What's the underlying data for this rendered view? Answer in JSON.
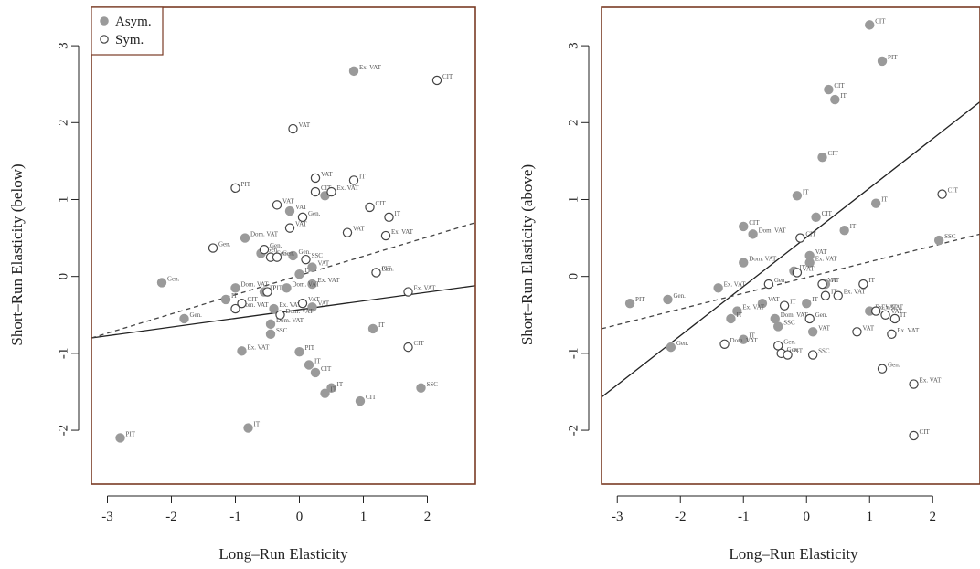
{
  "chart_data": [
    {
      "type": "scatter",
      "xlabel": "Long–Run Elasticity",
      "ylabel": "Short–Run Elasticity (below)",
      "xlim": [
        -3.25,
        2.75
      ],
      "ylim": [
        -2.7,
        3.5
      ],
      "xticks": [
        "-3",
        "-2",
        "-1",
        "0",
        "1",
        "2"
      ],
      "yticks": [
        "-2",
        "-1",
        "0",
        "1",
        "2",
        "3"
      ],
      "legend": {
        "position": "top-left",
        "entries": [
          "Asym.",
          "Sym."
        ]
      },
      "colors": {
        "asym": "#9a9a9a",
        "sym": "#444444",
        "frame": "#7a3b24"
      },
      "series": [
        {
          "name": "Asym.",
          "marker": "filled-circle",
          "points": [
            [
              0.85,
              2.67,
              "Ex. VAT"
            ],
            [
              -0.15,
              0.85,
              "VAT"
            ],
            [
              0.4,
              1.05,
              "IT"
            ],
            [
              -0.85,
              0.5,
              "Dom. VAT"
            ],
            [
              -2.15,
              -0.08,
              "Gen."
            ],
            [
              -1.0,
              -0.15,
              "Dom. VAT"
            ],
            [
              -1.15,
              -0.3,
              "IT"
            ],
            [
              -0.45,
              -0.62,
              "Dom. VAT"
            ],
            [
              -0.45,
              -0.75,
              "SSC"
            ],
            [
              -0.9,
              -0.97,
              "Ex. VAT"
            ],
            [
              0.0,
              -0.98,
              "PIT"
            ],
            [
              0.15,
              -1.15,
              "IT"
            ],
            [
              0.25,
              -1.25,
              "CIT"
            ],
            [
              0.5,
              -1.45,
              "IT"
            ],
            [
              0.4,
              -1.52,
              "IT"
            ],
            [
              0.95,
              -1.62,
              "CIT"
            ],
            [
              1.15,
              -0.68,
              "IT"
            ],
            [
              1.9,
              -1.45,
              "SSC"
            ],
            [
              -0.8,
              -1.97,
              "IT"
            ],
            [
              -2.8,
              -2.1,
              "PIT"
            ],
            [
              -0.1,
              0.27,
              "Gen."
            ],
            [
              0.2,
              -0.4,
              "VAT"
            ],
            [
              0.0,
              0.03,
              "IT"
            ],
            [
              0.2,
              -0.1,
              "Ex. VAT"
            ],
            [
              0.2,
              0.12,
              "VAT"
            ],
            [
              1.2,
              0.05,
              "PIT"
            ],
            [
              -0.55,
              -0.2,
              "IT"
            ],
            [
              -0.6,
              0.3,
              "Gen."
            ],
            [
              -1.8,
              -0.55,
              "Gen."
            ],
            [
              -0.2,
              -0.15,
              "Dom. VAT"
            ],
            [
              -0.4,
              -0.42,
              "Ex. VAT"
            ]
          ]
        },
        {
          "name": "Sym.",
          "marker": "open-circle",
          "points": [
            [
              2.15,
              2.55,
              "CIT"
            ],
            [
              -0.1,
              1.92,
              "VAT"
            ],
            [
              -1.0,
              1.15,
              "PIT"
            ],
            [
              0.25,
              1.28,
              "VAT"
            ],
            [
              0.25,
              1.1,
              "CIT"
            ],
            [
              0.5,
              1.1,
              "Ex. VAT"
            ],
            [
              0.85,
              1.25,
              "IT"
            ],
            [
              1.1,
              0.9,
              "CIT"
            ],
            [
              1.4,
              0.77,
              "IT"
            ],
            [
              -0.35,
              0.93,
              "VAT"
            ],
            [
              0.05,
              0.77,
              "Gen."
            ],
            [
              -0.15,
              0.63,
              "VAT"
            ],
            [
              -1.35,
              0.37,
              "Gen."
            ],
            [
              -0.55,
              0.35,
              "Gen."
            ],
            [
              -0.45,
              0.25,
              "Gen."
            ],
            [
              -0.35,
              0.25,
              "Gen."
            ],
            [
              0.75,
              0.57,
              "VAT"
            ],
            [
              1.35,
              0.53,
              "Ex. VAT"
            ],
            [
              0.1,
              0.22,
              "SSC"
            ],
            [
              1.7,
              -0.2,
              "Ex. VAT"
            ],
            [
              1.7,
              -0.92,
              "CIT"
            ],
            [
              0.05,
              -0.35,
              "VAT"
            ],
            [
              -1.0,
              -0.42,
              "Dom. VAT"
            ],
            [
              -0.3,
              -0.5,
              "Dom. VAT"
            ],
            [
              -0.5,
              -0.2,
              "PIT"
            ],
            [
              -0.9,
              -0.35,
              "CIT"
            ],
            [
              1.2,
              0.05,
              "Gen."
            ]
          ]
        }
      ],
      "lines": [
        {
          "style": "solid",
          "color": "#222222",
          "from": [
            -3.25,
            -0.8
          ],
          "to": [
            2.75,
            -0.12
          ]
        },
        {
          "style": "dashed",
          "color": "#444444",
          "from": [
            -3.25,
            -0.8
          ],
          "to": [
            2.75,
            0.7
          ]
        }
      ]
    },
    {
      "type": "scatter",
      "xlabel": "Long–Run Elasticity",
      "ylabel": "Short–Run Elasticity (above)",
      "xlim": [
        -3.25,
        2.75
      ],
      "ylim": [
        -2.7,
        3.5
      ],
      "xticks": [
        "-3",
        "-2",
        "-1",
        "0",
        "1",
        "2"
      ],
      "yticks": [
        "-2",
        "-1",
        "0",
        "1",
        "2",
        "3"
      ],
      "colors": {
        "asym": "#9a9a9a",
        "sym": "#444444",
        "frame": "#7a3b24"
      },
      "series": [
        {
          "name": "Asym.",
          "marker": "filled-circle",
          "points": [
            [
              1.0,
              3.27,
              "CIT"
            ],
            [
              1.2,
              2.8,
              "PIT"
            ],
            [
              0.35,
              2.43,
              "CIT"
            ],
            [
              0.45,
              2.3,
              "IT"
            ],
            [
              0.25,
              1.55,
              "CIT"
            ],
            [
              -0.15,
              1.05,
              "IT"
            ],
            [
              1.1,
              0.95,
              "IT"
            ],
            [
              0.15,
              0.77,
              "CIT"
            ],
            [
              0.6,
              0.6,
              "IT"
            ],
            [
              -1.0,
              0.65,
              "CIT"
            ],
            [
              -0.85,
              0.55,
              "Dom. VAT"
            ],
            [
              0.05,
              0.27,
              "VAT"
            ],
            [
              0.05,
              0.18,
              "Ex. VAT"
            ],
            [
              -1.0,
              0.18,
              "Dom. VAT"
            ],
            [
              2.1,
              0.47,
              "SSC"
            ],
            [
              -2.8,
              -0.35,
              "PIT"
            ],
            [
              -2.2,
              -0.3,
              "Gen."
            ],
            [
              -0.45,
              -0.65,
              "SSC"
            ],
            [
              -2.15,
              -0.92,
              "Gen."
            ],
            [
              -1.0,
              -0.82,
              "IT"
            ],
            [
              -0.2,
              0.07,
              "IT"
            ],
            [
              0.3,
              -0.1,
              "IT"
            ],
            [
              -0.7,
              -0.35,
              "VAT"
            ],
            [
              0.0,
              -0.35,
              "IT"
            ],
            [
              -0.5,
              -0.55,
              "Dom. VAT"
            ],
            [
              0.1,
              -0.72,
              "VAT"
            ],
            [
              1.0,
              -0.45,
              "Ex. VAT"
            ],
            [
              -1.1,
              -0.45,
              "Ex. VAT"
            ],
            [
              -1.2,
              -0.55,
              "IT"
            ],
            [
              -1.4,
              -0.15,
              "Ex. VAT"
            ]
          ]
        },
        {
          "name": "Sym.",
          "marker": "open-circle",
          "points": [
            [
              2.15,
              1.07,
              "CIT"
            ],
            [
              -0.1,
              0.5,
              "CIT"
            ],
            [
              -0.15,
              0.05,
              "VAT"
            ],
            [
              0.25,
              -0.1,
              "VAT"
            ],
            [
              0.9,
              -0.1,
              "IT"
            ],
            [
              0.5,
              -0.25,
              "Ex. VAT"
            ],
            [
              0.3,
              -0.25,
              "IT"
            ],
            [
              1.25,
              -0.5,
              "VAT"
            ],
            [
              1.4,
              -0.55,
              "IT"
            ],
            [
              1.35,
              -0.75,
              "Ex. VAT"
            ],
            [
              0.8,
              -0.72,
              "VAT"
            ],
            [
              0.05,
              -0.55,
              "Gen."
            ],
            [
              -0.35,
              -0.38,
              "IT"
            ],
            [
              -0.45,
              -0.9,
              "Gen."
            ],
            [
              -1.3,
              -0.88,
              "Dom. VAT"
            ],
            [
              -0.4,
              -1.0,
              "Gen."
            ],
            [
              -0.3,
              -1.02,
              "PIT"
            ],
            [
              0.1,
              -1.02,
              "SSC"
            ],
            [
              1.2,
              -1.2,
              "Gen."
            ],
            [
              1.7,
              -1.4,
              "Ex. VAT"
            ],
            [
              1.7,
              -2.07,
              "CIT"
            ],
            [
              1.1,
              -0.45,
              "Ex. VAT"
            ],
            [
              -0.6,
              -0.1,
              "Gen."
            ]
          ]
        }
      ],
      "lines": [
        {
          "style": "solid",
          "color": "#222222",
          "from": [
            -3.25,
            -1.57
          ],
          "to": [
            2.75,
            2.27
          ]
        },
        {
          "style": "dashed",
          "color": "#444444",
          "from": [
            -3.25,
            -0.68
          ],
          "to": [
            2.75,
            0.55
          ]
        }
      ]
    }
  ]
}
